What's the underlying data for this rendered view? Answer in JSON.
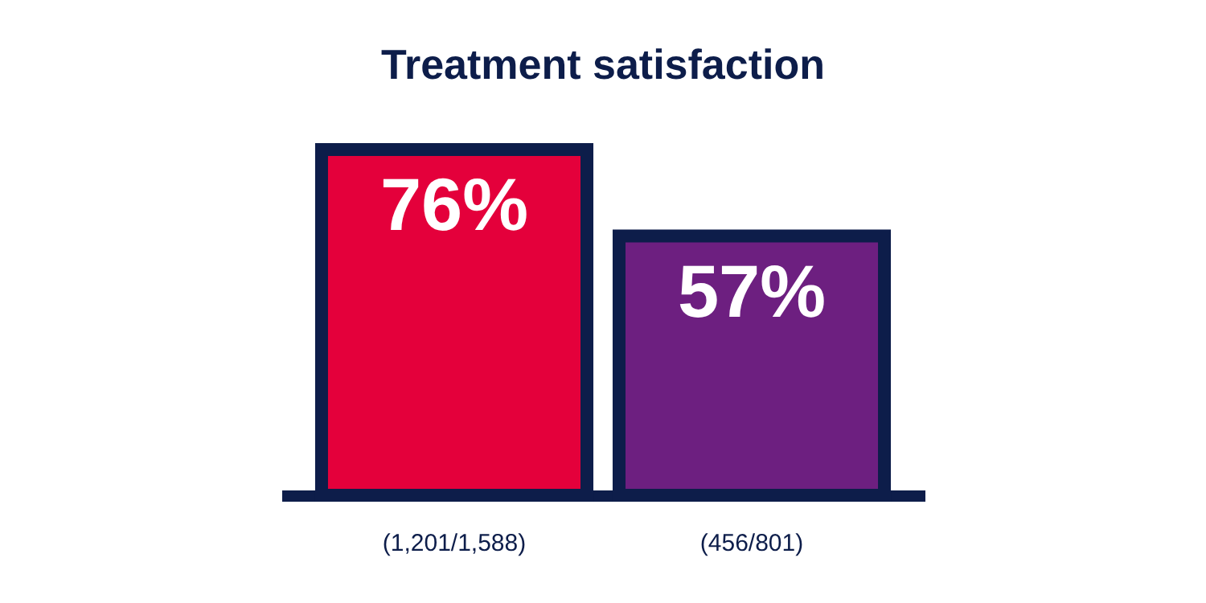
{
  "chart_data": {
    "type": "bar",
    "title": "Treatment satisfaction",
    "categories": [
      "(1,201/1,588)",
      "(456/801)"
    ],
    "values": [
      76,
      57
    ],
    "colors": [
      "#e4003b",
      "#6d1f80"
    ],
    "value_labels": [
      "76%",
      "57%"
    ]
  }
}
